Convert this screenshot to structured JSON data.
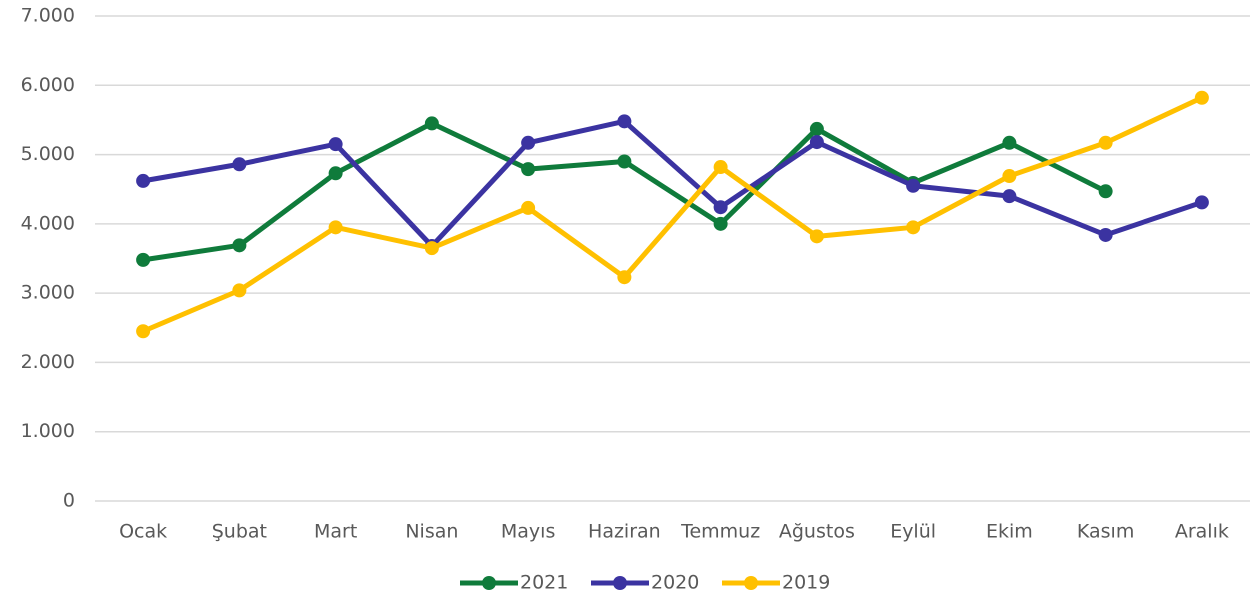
{
  "chart_data": {
    "type": "line",
    "categories": [
      "Ocak",
      "Şubat",
      "Mart",
      "Nisan",
      "Mayıs",
      "Haziran",
      "Temmuz",
      "Ağustos",
      "Eylül",
      "Ekim",
      "Kasım",
      "Aralık"
    ],
    "series": [
      {
        "name": "2021",
        "color": "#0f7b3b",
        "values": [
          3480,
          3690,
          4730,
          5450,
          4790,
          4900,
          4000,
          5370,
          4590,
          5170,
          4470,
          null
        ]
      },
      {
        "name": "2020",
        "color": "#3b33a1",
        "values": [
          4620,
          4860,
          5150,
          3680,
          5170,
          5480,
          4240,
          5180,
          4550,
          4400,
          3840,
          4310
        ]
      },
      {
        "name": "2019",
        "color": "#ffc000",
        "values": [
          2450,
          3040,
          3950,
          3650,
          4230,
          3230,
          4820,
          3820,
          3950,
          4690,
          5170,
          5820
        ]
      }
    ],
    "ylim": [
      0,
      7000
    ],
    "yticks": [
      0,
      {
        "value": 1000,
        "label": "1.000"
      },
      {
        "value": 2000,
        "label": "2.000"
      },
      {
        "value": 3000,
        "label": "3.000"
      },
      {
        "value": 4000,
        "label": "4.000"
      },
      {
        "value": 5000,
        "label": "5.000"
      },
      {
        "value": 6000,
        "label": "6.000"
      },
      {
        "value": 7000,
        "label": "7.000"
      }
    ],
    "grid": true,
    "legend": "bottom"
  }
}
